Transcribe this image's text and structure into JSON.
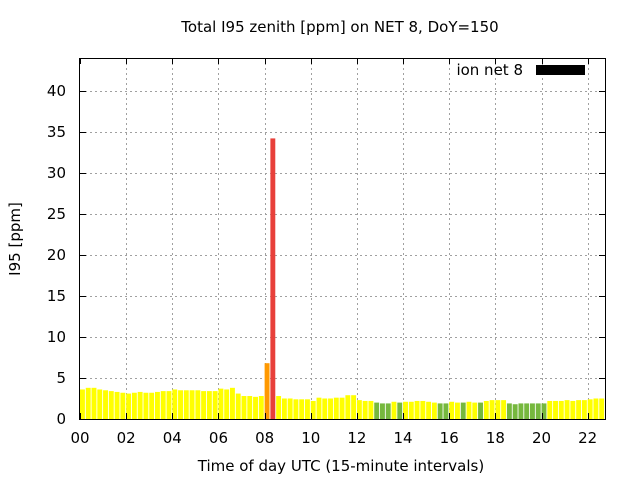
{
  "chart_data": {
    "type": "bar",
    "title": "Total I95 zenith [ppm] on NET 8, DoY=150",
    "xlabel": "Time of day UTC (15-minute intervals)",
    "ylabel": "I95 [ppm]",
    "xlim": [
      0,
      22.75
    ],
    "ylim": [
      0,
      44
    ],
    "x_ticks": [
      {
        "value": 0,
        "label": "00"
      },
      {
        "value": 2,
        "label": "02"
      },
      {
        "value": 4,
        "label": "04"
      },
      {
        "value": 6,
        "label": "06"
      },
      {
        "value": 8,
        "label": "08"
      },
      {
        "value": 10,
        "label": "10"
      },
      {
        "value": 12,
        "label": "12"
      },
      {
        "value": 14,
        "label": "14"
      },
      {
        "value": 16,
        "label": "16"
      },
      {
        "value": 18,
        "label": "18"
      },
      {
        "value": 20,
        "label": "20"
      },
      {
        "value": 22,
        "label": "22"
      }
    ],
    "y_ticks": [
      0,
      5,
      10,
      15,
      20,
      25,
      30,
      35,
      40
    ],
    "grid": true,
    "legend": {
      "label": "ion net 8",
      "position": "top-right",
      "color": "#000000"
    },
    "bar_interval_hours": 0.25,
    "colors": {
      "yellow": "#ffff00",
      "green": "#76b83e",
      "orange": "#ff9900",
      "red": "#e8403a"
    },
    "series": [
      {
        "values": [
          3.6,
          3.8,
          3.8,
          3.6,
          3.5,
          3.4,
          3.3,
          3.2,
          3.1,
          3.2,
          3.3,
          3.2,
          3.2,
          3.3,
          3.4,
          3.4,
          3.6,
          3.5,
          3.5,
          3.5,
          3.5,
          3.4,
          3.4,
          3.4,
          3.7,
          3.6,
          3.8,
          3.1,
          2.8,
          2.8,
          2.7,
          2.8,
          6.8,
          34.2,
          2.8,
          2.5,
          2.5,
          2.4,
          2.4,
          2.4,
          2.2,
          2.6,
          2.5,
          2.5,
          2.6,
          2.6,
          2.9,
          2.9,
          2.3,
          2.2,
          2.2,
          2.0,
          1.9,
          1.9,
          2.1,
          2.0,
          2.1,
          2.1,
          2.2,
          2.2,
          2.1,
          2.0,
          1.9,
          1.9,
          2.1,
          2.0,
          2.0,
          2.1,
          2.0,
          2.0,
          2.2,
          2.3,
          2.3,
          2.3,
          1.9,
          1.8,
          1.9,
          1.9,
          1.9,
          1.9,
          1.9,
          2.2,
          2.2,
          2.2,
          2.3,
          2.2,
          2.3,
          2.3,
          2.4,
          2.5,
          2.5
        ],
        "levels": [
          "y",
          "y",
          "y",
          "y",
          "y",
          "y",
          "y",
          "y",
          "y",
          "y",
          "y",
          "y",
          "y",
          "y",
          "y",
          "y",
          "y",
          "y",
          "y",
          "y",
          "y",
          "y",
          "y",
          "y",
          "y",
          "y",
          "y",
          "y",
          "y",
          "y",
          "y",
          "y",
          "o",
          "r",
          "y",
          "y",
          "y",
          "y",
          "y",
          "y",
          "y",
          "y",
          "y",
          "y",
          "y",
          "y",
          "y",
          "y",
          "y",
          "y",
          "y",
          "g",
          "g",
          "g",
          "y",
          "g",
          "y",
          "y",
          "y",
          "y",
          "y",
          "y",
          "g",
          "g",
          "y",
          "y",
          "g",
          "y",
          "y",
          "g",
          "y",
          "y",
          "y",
          "y",
          "g",
          "g",
          "g",
          "g",
          "g",
          "g",
          "g",
          "y",
          "y",
          "y",
          "y",
          "y",
          "y",
          "y",
          "y",
          "y",
          "y"
        ]
      }
    ]
  }
}
